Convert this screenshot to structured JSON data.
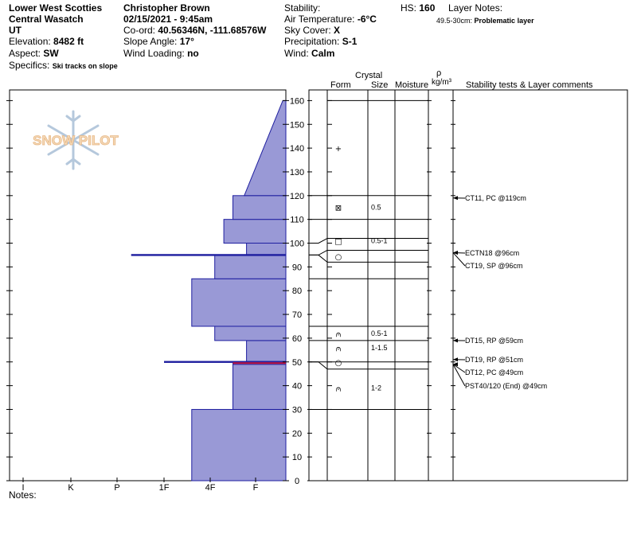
{
  "header": {
    "location": "Lower West Scotties",
    "range": "Central Wasatch",
    "state": "UT",
    "elevation_label": "Elevation:",
    "elevation": "8482 ft",
    "aspect_label": "Aspect:",
    "aspect": "SW",
    "specifics_label": "Specifics:",
    "specifics": "Ski tracks on slope",
    "observer": "Christopher Brown",
    "datetime": "02/15/2021 - 9:45am",
    "coord_label": "Co-ord:",
    "coord": "40.56346N, -111.68576W",
    "slope_label": "Slope Angle:",
    "slope": "17°",
    "wind_loading_label": "Wind Loading:",
    "wind_loading": "no",
    "stability_label": "Stability:",
    "air_temp_label": "Air Temperature:",
    "air_temp": "-6°C",
    "sky_label": "Sky Cover:",
    "sky": "X",
    "precip_label": "Precipitation:",
    "precip": "S-1",
    "wind_label": "Wind:",
    "wind": "Calm",
    "hs_label": "HS:",
    "hs": "160",
    "layer_notes_label": "Layer Notes:",
    "layer_notes_range": "49.5-30cm:",
    "layer_notes_text": "Problematic layer"
  },
  "columns": {
    "crystal": "Crystal",
    "form": "Form",
    "size": "Size",
    "moisture": "Moisture",
    "rho": "ρ",
    "density_unit": "kg/m³",
    "stability": "Stability tests & Layer comments"
  },
  "logo_text": "SNOW PILOT",
  "notes_label": "Notes:",
  "colors": {
    "hardness_fill": "#9999d6",
    "hardness_stroke": "#1f1fa0",
    "layer_highlight": "#c0143c"
  },
  "chart_data": {
    "type": "snow-profile",
    "y_range": [
      0,
      160
    ],
    "y_ticks": [
      "0",
      "10",
      "20",
      "30",
      "40",
      "50",
      "60",
      "70",
      "80",
      "90",
      "100",
      "110",
      "120",
      "130",
      "140",
      "150",
      "160"
    ],
    "hardness_ticks": [
      "I",
      "K",
      "P",
      "1F",
      "4F",
      "F"
    ],
    "hardness_layers": [
      {
        "bottom": 0,
        "top": 30,
        "hardness": 3.6
      },
      {
        "bottom": 30,
        "top": 49,
        "hardness": 4.5
      },
      {
        "bottom": 49,
        "top": 50,
        "hardness": 4.5
      },
      {
        "bottom": 50,
        "top": 59,
        "hardness": 4.8
      },
      {
        "bottom": 59,
        "top": 65,
        "hardness": 4.1
      },
      {
        "bottom": 65,
        "top": 85,
        "hardness": 3.6
      },
      {
        "bottom": 85,
        "top": 95,
        "hardness": 4.1
      },
      {
        "bottom": 95,
        "top": 100,
        "hardness": 4.8
      },
      {
        "bottom": 100,
        "top": 110,
        "hardness": 4.3
      },
      {
        "bottom": 110,
        "top": 120,
        "hardness": 4.5
      }
    ],
    "hardness_slope": {
      "bottom": 120,
      "top": 160,
      "hardness_bottom": 4.75,
      "hardness_top": 5.6
    },
    "thin_layers": [
      {
        "height": 95,
        "hardness": 2.3
      },
      {
        "height": 50,
        "hardness": 3.0
      }
    ],
    "highlight_layer": {
      "height": 49.5
    },
    "boundaries": [
      30,
      47,
      50,
      59,
      65,
      85,
      92,
      97,
      102,
      110,
      120
    ],
    "grains": [
      {
        "height": 140,
        "form": "+",
        "size": ""
      },
      {
        "height": 115,
        "form": "⊠",
        "size": "0.5"
      },
      {
        "height": 101,
        "form": "□",
        "size": "0.5-1"
      },
      {
        "height": 94.5,
        "form": "○",
        "size": ""
      },
      {
        "height": 62,
        "form": "⩀",
        "size": "0.5-1"
      },
      {
        "height": 56,
        "form": "⩀",
        "size": "1-1.5"
      },
      {
        "height": 50,
        "form": "○",
        "size": ""
      },
      {
        "height": 39,
        "form": "⩀",
        "size": "1-2"
      }
    ],
    "stability_tests": [
      {
        "height": 119,
        "text": "CT11, PC @119cm"
      },
      {
        "height": 96,
        "text": "ECTN18 @96cm"
      },
      {
        "height": 96,
        "text": "CT19, SP @96cm"
      },
      {
        "height": 59,
        "text": "DT15, RP @59cm"
      },
      {
        "height": 51,
        "text": "DT19, RP @51cm"
      },
      {
        "height": 49,
        "text": "DT12, PC @49cm"
      },
      {
        "height": 49,
        "text": "PST40/120 (End) @49cm"
      }
    ]
  }
}
